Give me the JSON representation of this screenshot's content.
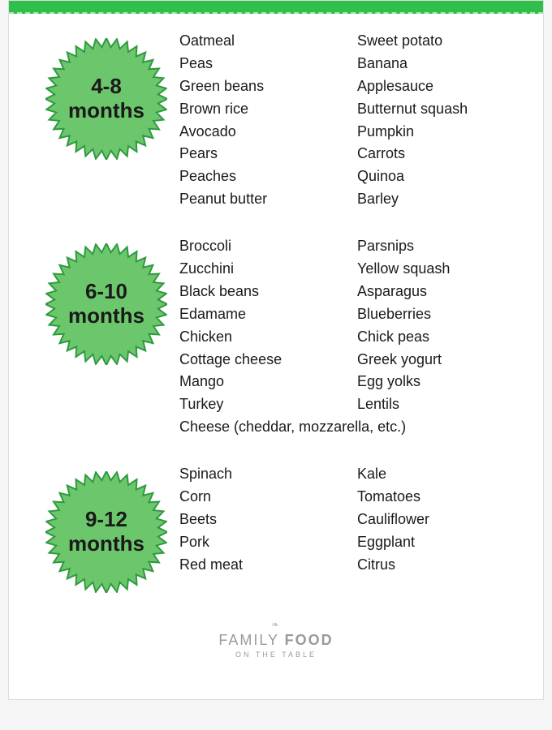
{
  "colors": {
    "badge_fill": "#6cc66c",
    "badge_stroke": "#2e9a3f",
    "top_bar": "#2fbf4a",
    "text": "#1a1a1a",
    "logo": "#9a9a9a"
  },
  "typography": {
    "badge_fontsize": 26,
    "item_fontsize": 18,
    "badge_fontweight": "bold"
  },
  "sections": [
    {
      "label_line1": "4-8",
      "label_line2": "months",
      "col1": [
        "Oatmeal",
        "Peas",
        "Green beans",
        "Brown rice",
        "Avocado",
        "Pears",
        "Peaches",
        "Peanut butter"
      ],
      "col2": [
        "Sweet potato",
        "Banana",
        "Applesauce",
        "Butternut squash",
        "Pumpkin",
        "Carrots",
        "Quinoa",
        "Barley"
      ],
      "full": []
    },
    {
      "label_line1": "6-10",
      "label_line2": "months",
      "col1": [
        "Broccoli",
        "Zucchini",
        "Black beans",
        "Edamame",
        "Chicken",
        "Cottage cheese",
        "Mango",
        "Turkey"
      ],
      "col2": [
        "Parsnips",
        "Yellow squash",
        "Asparagus",
        "Blueberries",
        "Chick peas",
        "Greek yogurt",
        "Egg yolks",
        "Lentils"
      ],
      "full": [
        "Cheese (cheddar, mozzarella, etc.)"
      ]
    },
    {
      "label_line1": "9-12",
      "label_line2": "months",
      "col1": [
        "Spinach",
        "Corn",
        "Beets",
        "Pork",
        "Red meat"
      ],
      "col2": [
        "Kale",
        "Tomatoes",
        "Cauliflower",
        "Eggplant",
        "Citrus"
      ],
      "full": []
    }
  ],
  "logo": {
    "line1a": "FAMILY ",
    "line1b": "FOOD",
    "line2": "ON THE TABLE"
  }
}
